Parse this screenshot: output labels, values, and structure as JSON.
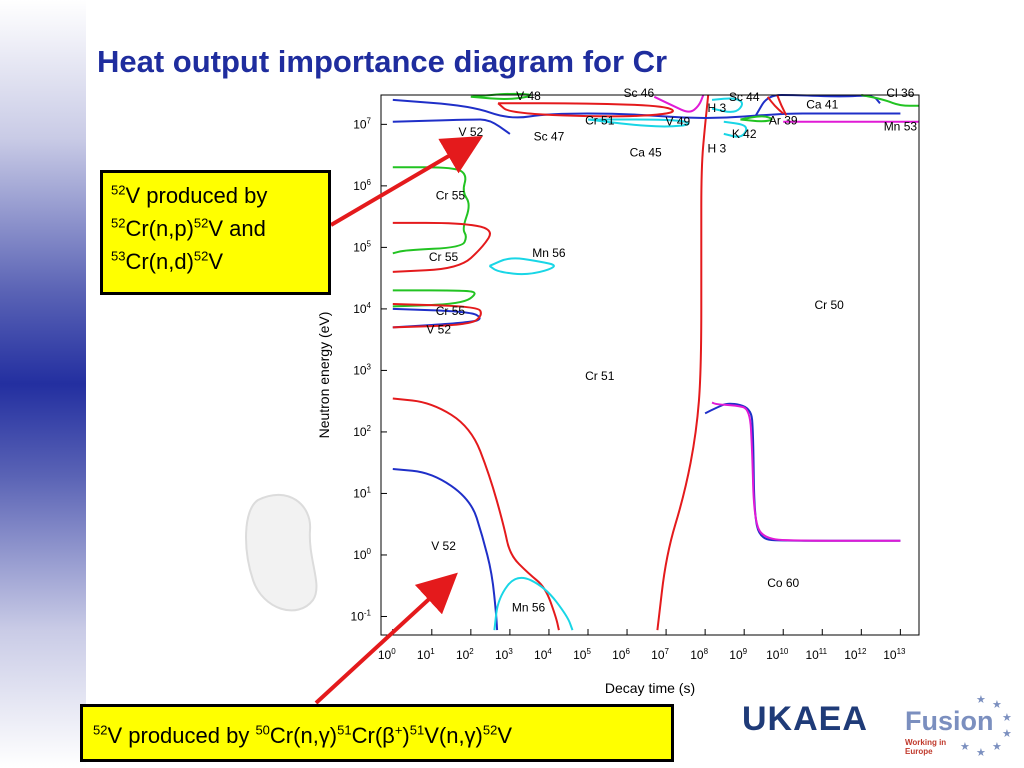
{
  "title": "Heat output importance diagram for Cr",
  "callout_top": {
    "lines": [
      [
        {
          "t": "52",
          "sup": true
        },
        {
          "t": "V produced by"
        }
      ],
      [
        {
          "t": "52",
          "sup": true
        },
        {
          "t": "Cr(n,p)"
        },
        {
          "t": "52",
          "sup": true
        },
        {
          "t": "V and"
        }
      ],
      [
        {
          "t": "53",
          "sup": true
        },
        {
          "t": "Cr(n,d)"
        },
        {
          "t": "52",
          "sup": true
        },
        {
          "t": "V"
        }
      ]
    ]
  },
  "callout_bottom": {
    "segments": [
      {
        "t": "52",
        "sup": true
      },
      {
        "t": "V produced by "
      },
      {
        "t": "50",
        "sup": true
      },
      {
        "t": "Cr(n,γ)"
      },
      {
        "t": "51",
        "sup": true
      },
      {
        "t": "Cr(β"
      },
      {
        "t": "+",
        "sup": true
      },
      {
        "t": ")"
      },
      {
        "t": "51",
        "sup": true
      },
      {
        "t": "V(n,γ)"
      },
      {
        "t": "52",
        "sup": true
      },
      {
        "t": "V"
      }
    ]
  },
  "logos": {
    "ukaea": "UKAEA",
    "fusion": "Fusion",
    "fusion_sub": "Working in Europe"
  },
  "chart_data": {
    "type": "importance diagram",
    "xlabel": "Decay time (s)",
    "ylabel": "Neutron energy (eV)",
    "x_scale": "log",
    "y_scale": "log",
    "xlim": [
      0.5,
      30000000000000
    ],
    "ylim": [
      0.05,
      30000000
    ],
    "x_ticks": [
      {
        "value": 1,
        "base": "10",
        "exp": "0"
      },
      {
        "value": 10,
        "base": "10",
        "exp": "1"
      },
      {
        "value": 100,
        "base": "10",
        "exp": "2"
      },
      {
        "value": 1000,
        "base": "10",
        "exp": "3"
      },
      {
        "value": 10000,
        "base": "10",
        "exp": "4"
      },
      {
        "value": 100000,
        "base": "10",
        "exp": "5"
      },
      {
        "value": 1000000,
        "base": "10",
        "exp": "6"
      },
      {
        "value": 10000000,
        "base": "10",
        "exp": "7"
      },
      {
        "value": 100000000,
        "base": "10",
        "exp": "8"
      },
      {
        "value": 1000000000,
        "base": "10",
        "exp": "9"
      },
      {
        "value": 10000000000,
        "base": "10",
        "exp": "10"
      },
      {
        "value": 100000000000,
        "base": "10",
        "exp": "11"
      },
      {
        "value": 1000000000000,
        "base": "10",
        "exp": "12"
      },
      {
        "value": 10000000000000,
        "base": "10",
        "exp": "13"
      }
    ],
    "y_ticks": [
      {
        "value": 0.1,
        "base": "10",
        "exp": "-1"
      },
      {
        "value": 1,
        "base": "10",
        "exp": "0"
      },
      {
        "value": 10,
        "base": "10",
        "exp": "1"
      },
      {
        "value": 100,
        "base": "10",
        "exp": "2"
      },
      {
        "value": 1000,
        "base": "10",
        "exp": "3"
      },
      {
        "value": 10000,
        "base": "10",
        "exp": "4"
      },
      {
        "value": 100000,
        "base": "10",
        "exp": "5"
      },
      {
        "value": 1000000,
        "base": "10",
        "exp": "6"
      },
      {
        "value": 10000000,
        "base": "10",
        "exp": "7"
      }
    ],
    "series_colors": {
      "red": "#e41a1c",
      "blue": "#1f2fc8",
      "green": "#22c322",
      "cyan": "#19d6e6",
      "magenta": "#e01ad6"
    },
    "boundaries": [
      {
        "color": "red",
        "points": [
          [
            1,
            350
          ],
          [
            10,
            300
          ],
          [
            100,
            120
          ],
          [
            300,
            20
          ],
          [
            700,
            3
          ],
          [
            1000,
            1
          ],
          [
            3000,
            0.5
          ],
          [
            8000,
            0.3
          ],
          [
            15000,
            0.1
          ],
          [
            18000,
            0.06
          ]
        ]
      },
      {
        "color": "blue",
        "points": [
          [
            1,
            25
          ],
          [
            10,
            22
          ],
          [
            100,
            8
          ],
          [
            200,
            2
          ],
          [
            350,
            0.5
          ],
          [
            450,
            0.1
          ],
          [
            470,
            0.06
          ]
        ]
      },
      {
        "color": "cyan",
        "points": [
          [
            400,
            0.06
          ],
          [
            500,
            0.2
          ],
          [
            1500,
            0.5
          ],
          [
            8000,
            0.3
          ],
          [
            30000,
            0.1
          ],
          [
            40000,
            0.06
          ]
        ]
      },
      {
        "color": "red",
        "points": [
          [
            6000000,
            0.06
          ],
          [
            10000000,
            1
          ],
          [
            30000000,
            10
          ],
          [
            60000000,
            100
          ],
          [
            80000000,
            1000
          ],
          [
            80000000,
            100000
          ],
          [
            80000000,
            2000000
          ],
          [
            100000000,
            10000000
          ],
          [
            120000000,
            30000000
          ]
        ]
      },
      {
        "color": "blue",
        "points": [
          [
            100000000,
            200
          ],
          [
            200000000,
            250
          ],
          [
            400000000,
            300
          ],
          [
            1500000000,
            250
          ],
          [
            1700000000,
            100
          ],
          [
            1800000000,
            5
          ],
          [
            2500000000,
            1.8
          ],
          [
            10000000000,
            1.7
          ],
          [
            10000000000000,
            1.7
          ]
        ]
      },
      {
        "color": "magenta",
        "points": [
          [
            150000000,
            300
          ],
          [
            200000000,
            280
          ],
          [
            600000000,
            270
          ],
          [
            1400000000,
            240
          ],
          [
            1600000000,
            50
          ],
          [
            1800000000,
            4
          ],
          [
            3000000000,
            1.8
          ],
          [
            30000000000,
            1.7
          ],
          [
            10000000000000,
            1.7
          ]
        ]
      },
      {
        "color": "blue",
        "points": [
          [
            1,
            25000000
          ],
          [
            100,
            20000000
          ],
          [
            1000,
            12000000
          ],
          [
            10000,
            15000000
          ],
          [
            1000000,
            15000000
          ],
          [
            100000000,
            12000000
          ],
          [
            10000000000,
            15000000
          ],
          [
            100000000000,
            15000000
          ],
          [
            10000000000000,
            15000000
          ]
        ]
      },
      {
        "color": "blue",
        "points": [
          [
            1,
            11000000
          ],
          [
            100,
            12000000
          ],
          [
            300,
            12000000
          ],
          [
            1000,
            7000000
          ]
        ]
      },
      {
        "color": "magenta",
        "points": [
          [
            10000000000,
            11000000
          ],
          [
            1000000000000,
            11000000
          ],
          [
            30000000000000,
            11000000
          ]
        ]
      },
      {
        "color": "green",
        "points": [
          [
            1,
            2000000
          ],
          [
            40,
            2000000
          ],
          [
            80,
            1500000
          ],
          [
            60,
            800000
          ],
          [
            100,
            500000
          ],
          [
            60,
            200000
          ],
          [
            80,
            150000
          ],
          [
            60,
            100000
          ],
          [
            2,
            90000
          ],
          [
            1,
            80000
          ]
        ]
      },
      {
        "color": "red",
        "points": [
          [
            1,
            40000
          ],
          [
            50,
            45000
          ],
          [
            200,
            100000
          ],
          [
            400,
            200000
          ],
          [
            50,
            250000
          ],
          [
            1,
            250000
          ]
        ]
      },
      {
        "color": "green",
        "points": [
          [
            1,
            20000
          ],
          [
            80,
            20000
          ],
          [
            150,
            18000
          ],
          [
            60,
            12000
          ],
          [
            1,
            11000
          ]
        ]
      },
      {
        "color": "blue",
        "points": [
          [
            1,
            10000
          ],
          [
            100,
            9000
          ],
          [
            200,
            7000
          ],
          [
            100,
            6000
          ],
          [
            1,
            5000
          ]
        ]
      },
      {
        "color": "cyan",
        "points": [
          [
            300,
            50000
          ],
          [
            1000,
            70000
          ],
          [
            5000,
            60000
          ],
          [
            20000,
            50000
          ],
          [
            3000,
            35000
          ],
          [
            500,
            40000
          ],
          [
            300,
            50000
          ]
        ]
      },
      {
        "color": "red",
        "points": [
          [
            1,
            5000
          ],
          [
            100,
            5500
          ],
          [
            200,
            8000
          ],
          [
            150,
            11000
          ],
          [
            1,
            12000
          ]
        ]
      },
      {
        "color": "green",
        "points": [
          [
            100,
            28000000
          ],
          [
            1000,
            25000000
          ],
          [
            5000,
            30000000
          ],
          [
            1000,
            32000000
          ],
          [
            100,
            28000000
          ]
        ]
      },
      {
        "color": "red",
        "points": [
          [
            500,
            22000000
          ],
          [
            100000,
            22000000
          ],
          [
            10000000,
            20000000
          ],
          [
            20000000,
            15000000
          ],
          [
            500000,
            13000000
          ],
          [
            1000,
            15000000
          ],
          [
            500,
            22000000
          ]
        ]
      },
      {
        "color": "cyan",
        "points": [
          [
            100000,
            12000000
          ],
          [
            1000000,
            10000000
          ],
          [
            10000000,
            9000000
          ],
          [
            50000000,
            10000000
          ],
          [
            20000000,
            12000000
          ],
          [
            100000,
            12000000
          ]
        ]
      },
      {
        "color": "cyan",
        "points": [
          [
            150000000,
            25000000
          ],
          [
            600000000,
            27000000
          ],
          [
            1000000000,
            22000000
          ],
          [
            600000000,
            15000000
          ],
          [
            150000000,
            18000000
          ]
        ]
      },
      {
        "color": "green",
        "points": [
          [
            800000000,
            12000000
          ],
          [
            3000000000,
            11000000
          ],
          [
            6000000000,
            12000000
          ],
          [
            3000000000,
            14000000
          ],
          [
            800000000,
            12000000
          ]
        ]
      },
      {
        "color": "cyan",
        "points": [
          [
            300000000,
            11000000
          ],
          [
            1000000000,
            10000000
          ],
          [
            1200000000,
            8000000
          ],
          [
            800000000,
            6000000
          ],
          [
            300000000,
            7000000
          ]
        ]
      },
      {
        "color": "blue",
        "points": [
          [
            2000000000,
            14000000
          ],
          [
            4000000000,
            30000000
          ],
          [
            20000000000,
            30000000
          ],
          [
            300000000000,
            28000000
          ],
          [
            2000000000000,
            30000000
          ],
          [
            3000000000000,
            22000000
          ]
        ]
      },
      {
        "color": "red",
        "points": [
          [
            7000000000,
            30000000
          ],
          [
            9000000000,
            20000000
          ],
          [
            12000000000,
            14000000
          ]
        ]
      },
      {
        "color": "green",
        "points": [
          [
            1000000000000,
            30000000
          ],
          [
            4000000000000,
            25000000
          ],
          [
            10000000000000,
            20000000
          ],
          [
            30000000000000,
            20000000
          ]
        ]
      },
      {
        "color": "magenta",
        "points": [
          [
            5000000,
            28000000
          ],
          [
            15000000,
            20000000
          ],
          [
            40000000,
            15000000
          ],
          [
            70000000,
            20000000
          ],
          [
            90000000,
            30000000
          ]
        ]
      },
      {
        "color": "red",
        "points": [
          [
            4000000000,
            28000000
          ],
          [
            6000000000,
            20000000
          ],
          [
            10000000000,
            15000000
          ]
        ]
      }
    ],
    "labels": [
      {
        "text": "V  48",
        "x": 3000,
        "y": 25000000
      },
      {
        "text": "Sc 46",
        "x": 2000000,
        "y": 28000000
      },
      {
        "text": "Sc 44",
        "x": 1000000000,
        "y": 24000000
      },
      {
        "text": "Ca 41",
        "x": 100000000000,
        "y": 18000000
      },
      {
        "text": "Cl 36",
        "x": 10000000000000,
        "y": 28000000
      },
      {
        "text": "H   3",
        "x": 200000000,
        "y": 16000000
      },
      {
        "text": "Cr 51",
        "x": 200000,
        "y": 10000000
      },
      {
        "text": "V  49",
        "x": 20000000,
        "y": 9500000
      },
      {
        "text": "Ar 39",
        "x": 10000000000,
        "y": 10000000
      },
      {
        "text": "Mn 53",
        "x": 10000000000000,
        "y": 8000000
      },
      {
        "text": "V  52",
        "x": 100,
        "y": 6500000
      },
      {
        "text": "Sc 47",
        "x": 10000,
        "y": 5500000
      },
      {
        "text": "K  42",
        "x": 1000000000,
        "y": 6000000
      },
      {
        "text": "H   3",
        "x": 200000000,
        "y": 3500000
      },
      {
        "text": "Ca 45",
        "x": 3000000,
        "y": 3000000
      },
      {
        "text": "Cr 55",
        "x": 30,
        "y": 600000
      },
      {
        "text": "Cr 55",
        "x": 20,
        "y": 60000
      },
      {
        "text": "Mn 56",
        "x": 10000,
        "y": 70000
      },
      {
        "text": "Cr 55",
        "x": 30,
        "y": 8000
      },
      {
        "text": "V  52",
        "x": 15,
        "y": 4000
      },
      {
        "text": "Cr 50",
        "x": 150000000000,
        "y": 10000
      },
      {
        "text": "Cr 51",
        "x": 200000,
        "y": 700
      },
      {
        "text": "V  52",
        "x": 20,
        "y": 1.2
      },
      {
        "text": "Co 60",
        "x": 10000000000,
        "y": 0.3
      },
      {
        "text": "Mn 56",
        "x": 3000,
        "y": 0.12
      }
    ]
  }
}
